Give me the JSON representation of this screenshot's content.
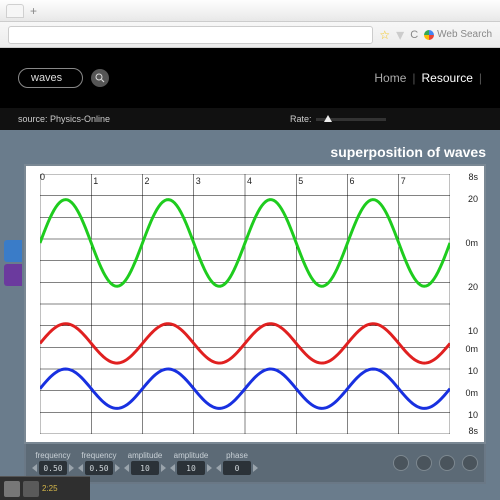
{
  "browser": {
    "search_placeholder": "Web Search"
  },
  "header": {
    "search_value": "waves",
    "nav": {
      "home": "Home",
      "resource": "Resource"
    }
  },
  "subbar": {
    "source": "source: Physics-Online",
    "rate_label": "Rate:"
  },
  "sim": {
    "title": "superposition of waves",
    "chart": {
      "type": "line",
      "background_color": "#ffffff",
      "grid_color": "#000000",
      "grid_line_width": 0.5,
      "line_width": 3,
      "xlim": [
        0,
        8
      ],
      "xtick_step": 1,
      "x_end_label": "8s",
      "waves": {
        "green": {
          "color": "#1ecc1e",
          "amplitude": 20,
          "frequency": 0.5,
          "phase": 0.0,
          "y_center": 70,
          "axis_labels": {
            "top": "20",
            "mid": "0m",
            "bot": "20"
          }
        },
        "red": {
          "color": "#e02020",
          "amplitude": 10,
          "frequency": 0.5,
          "phase": 0.0,
          "y_center": 172,
          "axis_labels": {
            "top": "10",
            "mid": "0m",
            "bot": "10"
          }
        },
        "blue": {
          "color": "#1830e0",
          "amplitude": 10,
          "frequency": 0.5,
          "phase": 0.0,
          "y_center": 218,
          "axis_labels": {
            "top": "10",
            "mid": "0m",
            "bot": "10"
          }
        }
      }
    },
    "controls": [
      {
        "label": "frequency",
        "value": "0.50"
      },
      {
        "label": "frequency",
        "value": "0.50"
      },
      {
        "label": "amplitude",
        "value": "10"
      },
      {
        "label": "amplitude",
        "value": "10"
      },
      {
        "label": "phase",
        "value": "0"
      }
    ]
  }
}
